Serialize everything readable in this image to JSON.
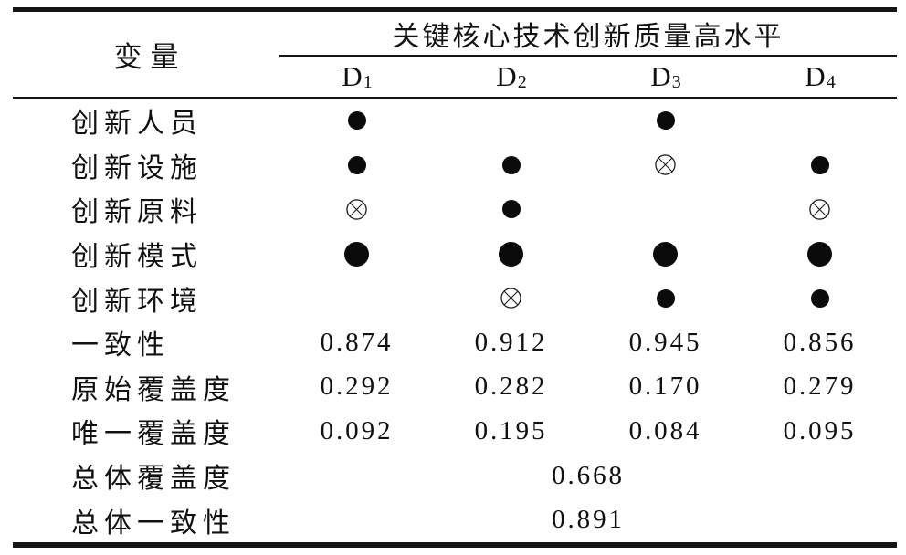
{
  "table": {
    "corner_header": "变量",
    "spanner": "关键核心技术创新质量高水平",
    "columns": [
      {
        "letter": "D",
        "sub": "1"
      },
      {
        "letter": "D",
        "sub": "2"
      },
      {
        "letter": "D",
        "sub": "3"
      },
      {
        "letter": "D",
        "sub": "4"
      }
    ],
    "symbols": {
      "dot": "filled-circle (●)",
      "big-dot": "large-filled-circle (●)",
      "cross": "crossed-circle (⊗)",
      "blank": ""
    },
    "colors": {
      "ink": "#111111",
      "background": "#ffffff"
    },
    "rows": [
      {
        "kind": "symbols",
        "label": "创新人员",
        "cells": [
          "dot",
          "blank",
          "dot",
          "blank"
        ]
      },
      {
        "kind": "symbols",
        "label": "创新设施",
        "cells": [
          "dot",
          "dot",
          "cross",
          "dot"
        ]
      },
      {
        "kind": "symbols",
        "label": "创新原料",
        "cells": [
          "cross",
          "dot",
          "blank",
          "cross"
        ]
      },
      {
        "kind": "symbols",
        "label": "创新模式",
        "cells": [
          "big-dot",
          "big-dot",
          "big-dot",
          "big-dot"
        ]
      },
      {
        "kind": "symbols",
        "label": "创新环境",
        "cells": [
          "blank",
          "cross",
          "dot",
          "dot"
        ]
      },
      {
        "kind": "values",
        "label": "一致性",
        "cells": [
          "0.874",
          "0.912",
          "0.945",
          "0.856"
        ]
      },
      {
        "kind": "values",
        "label": "原始覆盖度",
        "cells": [
          "0.292",
          "0.282",
          "0.170",
          "0.279"
        ]
      },
      {
        "kind": "values",
        "label": "唯一覆盖度",
        "cells": [
          "0.092",
          "0.195",
          "0.084",
          "0.095"
        ]
      },
      {
        "kind": "span",
        "label": "总体覆盖度",
        "span_value": "0.668"
      },
      {
        "kind": "span",
        "label": "总体一致性",
        "span_value": "0.891"
      }
    ]
  }
}
